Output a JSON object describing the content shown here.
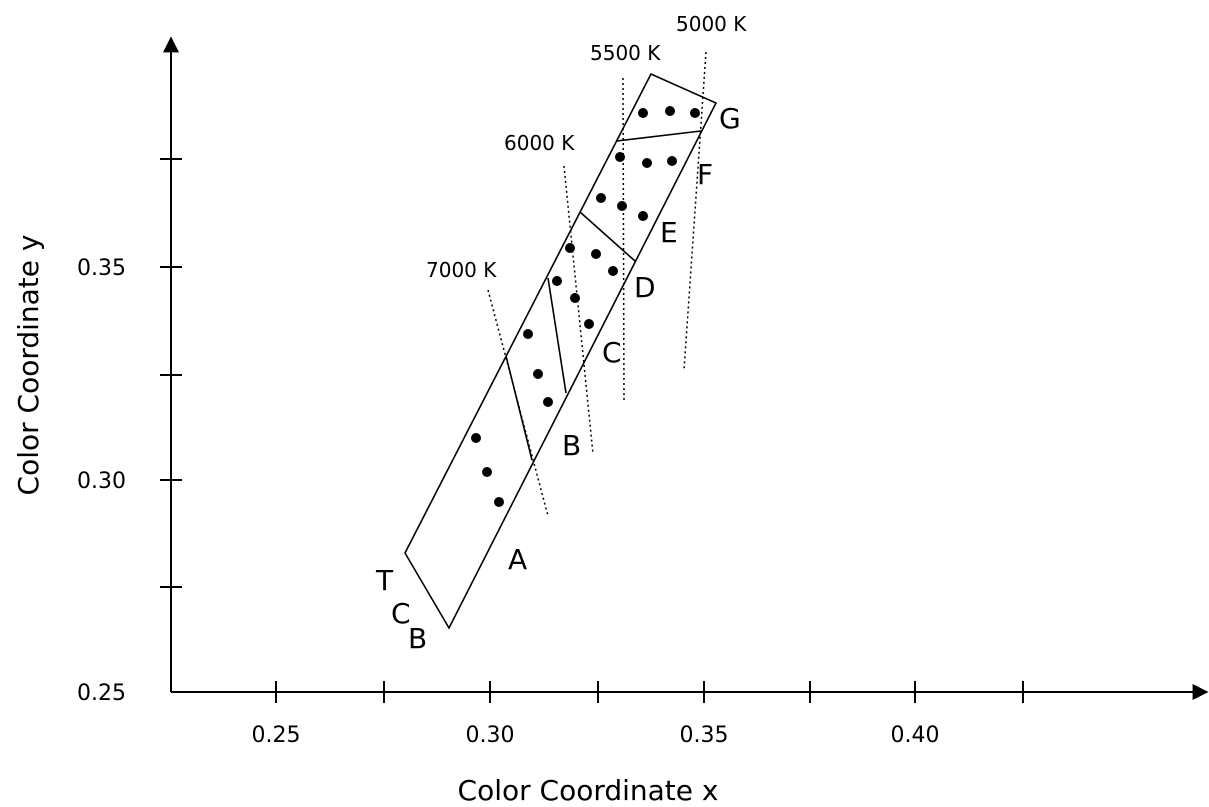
{
  "axes": {
    "x_label": "Color Coordinate x",
    "y_label": "Color Coordinate y",
    "x_ticks": [
      "0.25",
      "0.30",
      "0.35",
      "0.40"
    ],
    "y_ticks": [
      "0.25",
      "0.30",
      "0.35"
    ]
  },
  "isotherms": [
    {
      "id": "7000",
      "label": "7000 K"
    },
    {
      "id": "6000",
      "label": "6000 K"
    },
    {
      "id": "5500",
      "label": "5500 K"
    },
    {
      "id": "5000",
      "label": "5000 K"
    }
  ],
  "bins": [
    "A",
    "B",
    "C",
    "D",
    "E",
    "F",
    "G"
  ],
  "corner_label": [
    "T",
    "C",
    "B"
  ],
  "dot_count": 22
}
